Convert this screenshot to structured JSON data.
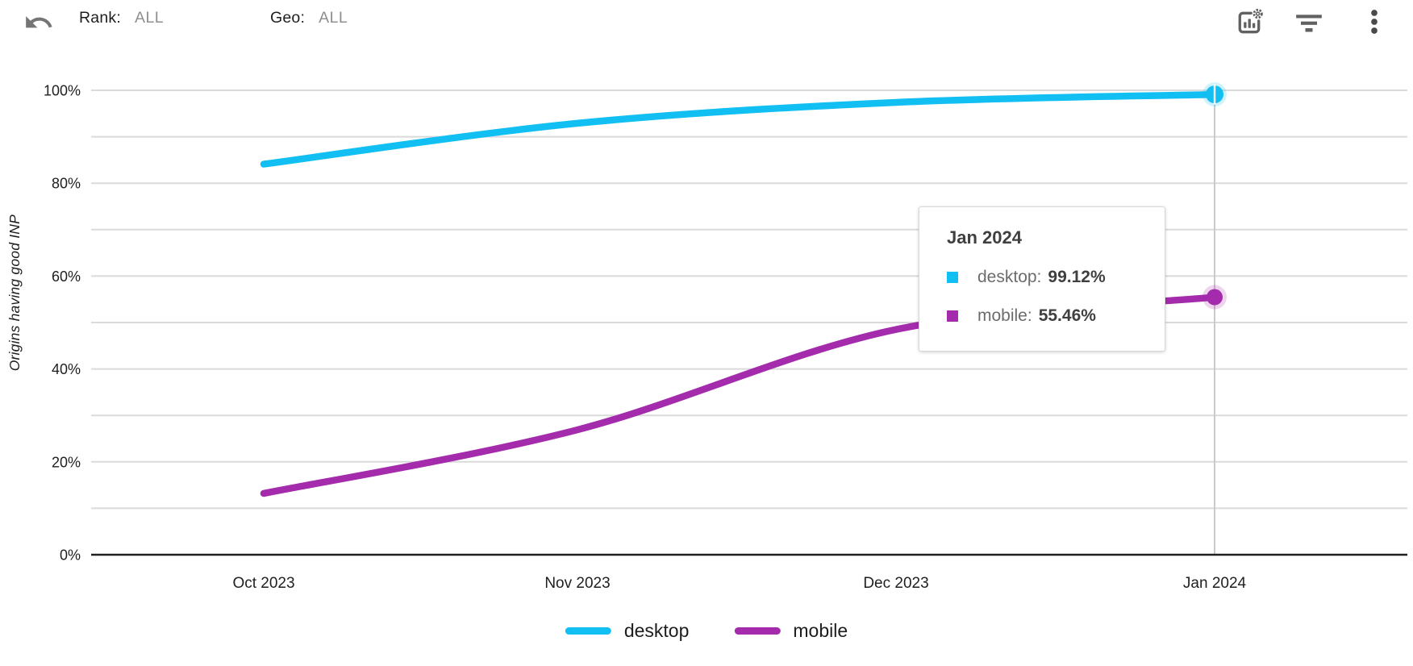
{
  "toolbar": {
    "undo_icon": "undo-arrow",
    "rank": {
      "label": "Rank:",
      "value": "ALL"
    },
    "geo": {
      "label": "Geo:",
      "value": "ALL"
    },
    "actions": [
      {
        "icon": "chart-settings"
      },
      {
        "icon": "filter-list"
      },
      {
        "icon": "more-vertical"
      }
    ]
  },
  "chart_data": {
    "type": "line",
    "title": "",
    "xlabel": "",
    "ylabel": "Origins having good INP",
    "categories": [
      "Oct 2023",
      "Nov 2023",
      "Dec 2023",
      "Jan 2024"
    ],
    "series": [
      {
        "name": "desktop",
        "color": "#12BFF2",
        "values": [
          84.1,
          92.9,
          97.4,
          99.12
        ]
      },
      {
        "name": "mobile",
        "color": "#A32BAC",
        "values": [
          13.2,
          26.9,
          48.5,
          55.46
        ]
      }
    ],
    "ylim": [
      0,
      100
    ],
    "y_ticks": [
      "0%",
      "20%",
      "40%",
      "60%",
      "80%",
      "100%"
    ],
    "grid_step_pct": 10,
    "grid": true,
    "legend_position": "bottom",
    "highlighted_x": "Jan 2024",
    "highlighted_index": 3
  },
  "tooltip": {
    "title": "Jan 2024",
    "rows": [
      {
        "series": "desktop",
        "label": "desktop:",
        "value": "99.12%"
      },
      {
        "series": "mobile",
        "label": "mobile:",
        "value": "55.46%"
      }
    ]
  },
  "colors": {
    "gridline": "#dadada",
    "axis": "#1f1f1f",
    "crosshair": "#c9c9c9",
    "icon_gray": "#616161",
    "undo_gray": "#757575"
  }
}
